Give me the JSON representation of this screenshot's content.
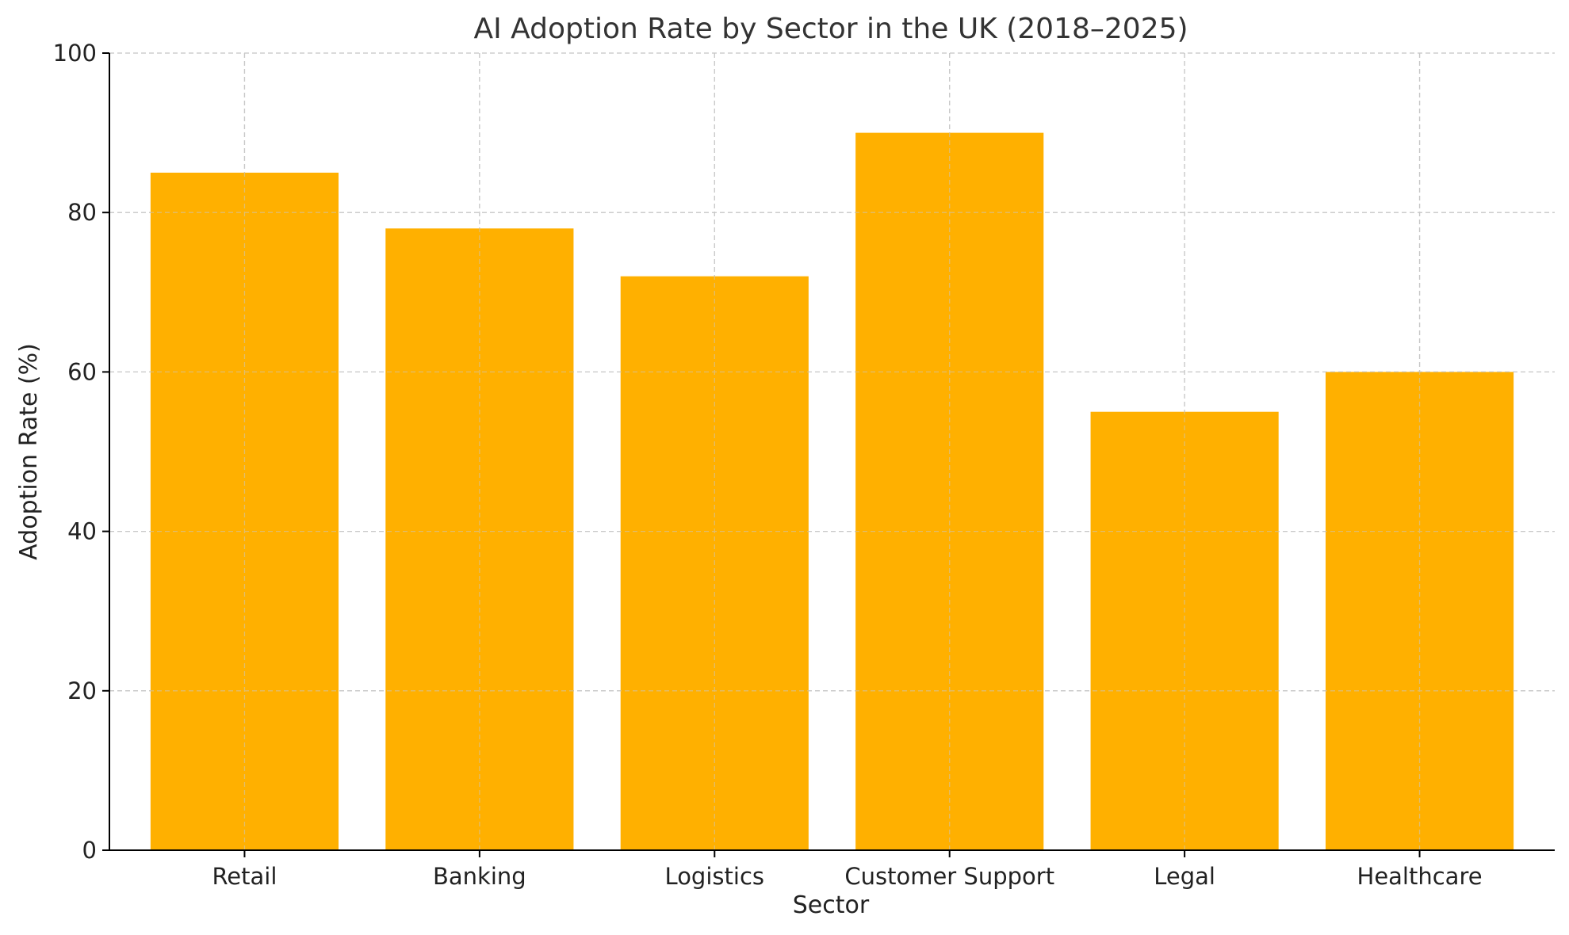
{
  "chart_data": {
    "type": "bar",
    "title": "AI Adoption Rate by Sector in the UK (2018–2025)",
    "xlabel": "Sector",
    "ylabel": "Adoption Rate (%)",
    "categories": [
      "Retail",
      "Banking",
      "Logistics",
      "Customer Support",
      "Legal",
      "Healthcare"
    ],
    "values": [
      85,
      78,
      72,
      90,
      55,
      60
    ],
    "ylim": [
      0,
      100
    ],
    "yticks": [
      0,
      20,
      40,
      60,
      80,
      100
    ],
    "grid": true,
    "bar_color": "#FFB000"
  }
}
